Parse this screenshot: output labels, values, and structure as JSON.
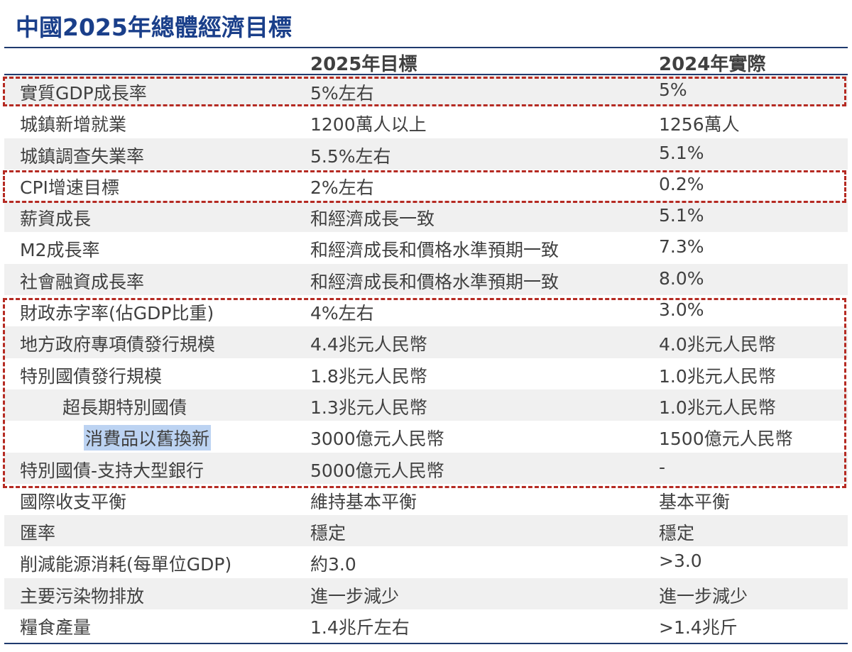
{
  "title": "中國2025年總體經濟目標",
  "columns": [
    "",
    "2025年目標",
    "2024年實際"
  ],
  "rows": [
    {
      "item": "實質GDP成長率",
      "target": "5%左右",
      "actual": "5%",
      "indent": 0
    },
    {
      "item": "城鎮新增就業",
      "target": "1200萬人以上",
      "actual": "1256萬人",
      "indent": 0
    },
    {
      "item": "城鎮調查失業率",
      "target": "5.5%左右",
      "actual": "5.1%",
      "indent": 0
    },
    {
      "item": "CPI增速目標",
      "target": "2%左右",
      "actual": "0.2%",
      "indent": 0
    },
    {
      "item": "薪資成長",
      "target": "和經濟成長一致",
      "actual": "5.1%",
      "indent": 0
    },
    {
      "item": "M2成長率",
      "target": "和經濟成長和價格水準預期一致",
      "actual": "7.3%",
      "indent": 0
    },
    {
      "item": "社會融資成長率",
      "target": "和經濟成長和價格水準預期一致",
      "actual": "8.0%",
      "indent": 0
    },
    {
      "item": "財政赤字率(佔GDP比重)",
      "target": "4%左右",
      "actual": "3.0%",
      "indent": 0
    },
    {
      "item": "地方政府專項債發行規模",
      "target": "4.4兆元人民幣",
      "actual": "4.0兆元人民幣",
      "indent": 0
    },
    {
      "item": "特別國債發行規模",
      "target": "1.8兆元人民幣",
      "actual": "1.0兆元人民幣",
      "indent": 0
    },
    {
      "item": "超長期特別國債",
      "target": "1.3兆元人民幣",
      "actual": "1.0兆元人民幣",
      "indent": 1
    },
    {
      "item": "消費品以舊換新",
      "target": "3000億元人民幣",
      "actual": "1500億元人民幣",
      "indent": 2,
      "highlighted": true
    },
    {
      "item": "特別國債-支持大型銀行",
      "target": "5000億元人民幣",
      "actual": "-",
      "indent": 0
    },
    {
      "item": "國際收支平衡",
      "target": "維持基本平衡",
      "actual": "基本平衡",
      "indent": 0
    },
    {
      "item": "匯率",
      "target": "穩定",
      "actual": "穩定",
      "indent": 0
    },
    {
      "item": "削減能源消耗(每單位GDP)",
      "target": "約3.0",
      "actual": ">3.0",
      "indent": 0
    },
    {
      "item": "主要污染物排放",
      "target": "進一步減少",
      "actual": "進一步減少",
      "indent": 0
    },
    {
      "item": "糧食產量",
      "target": "1.4兆斤左右",
      "actual": ">1.4兆斤",
      "indent": 0
    }
  ],
  "colors": {
    "title": "#1a3f8a",
    "rule": "#1f3a6e",
    "dashed_box": "#b52a22",
    "stripe": "#f0f0f0",
    "highlight": "#bcd3f2"
  }
}
